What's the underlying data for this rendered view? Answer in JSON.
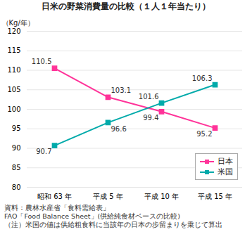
{
  "chart_data": {
    "type": "line",
    "title": "日米の野菜消費量の比較（１人１年当たり）",
    "ylabel": "（Kg/年）",
    "categories": [
      "昭和 63 年",
      "平成 5 年",
      "平成 10 年",
      "平成 15 年"
    ],
    "series": [
      {
        "name": "日本",
        "color": "#FF3399",
        "marker": "square",
        "values": [
          110.5,
          103.1,
          99.4,
          95.2
        ]
      },
      {
        "name": "米国",
        "color": "#00AAAA",
        "marker": "square",
        "values": [
          90.7,
          96.6,
          101.6,
          106.3
        ]
      }
    ],
    "ylim": [
      80,
      120
    ],
    "yticks": [
      80,
      85,
      90,
      95,
      100,
      105,
      110,
      115,
      120
    ],
    "grid": true,
    "legend": "lower right",
    "data_labels": true,
    "footnotes": [
      "資料：農林水産省「食料需給表」",
      "FAO「Food Balance Sheet」(供給純食材ベースの比較)",
      "（注）米国の値は供給粗食料に当該年の日本の歩留まりを乗じて算出"
    ]
  }
}
